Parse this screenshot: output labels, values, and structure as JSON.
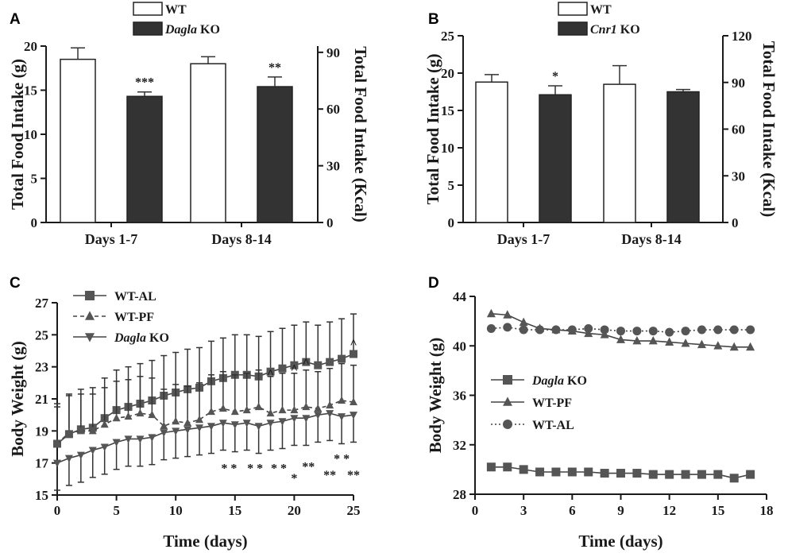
{
  "colors": {
    "ink": "#1a1a1a",
    "ko_fill": "#333333",
    "wt_fill": "#ffffff",
    "marker": "#555555"
  },
  "chart_data": [
    {
      "id": "A",
      "type": "bar",
      "panel_label": "A",
      "categories": [
        "Days 1-7",
        "Days 8-14"
      ],
      "series": [
        {
          "name": "WT",
          "values": [
            18.5,
            18.0
          ],
          "errors": [
            1.3,
            0.8
          ],
          "fill": "#ffffff"
        },
        {
          "name": "Dagla",
          "suffix": " KO",
          "italic": true,
          "values": [
            14.3,
            15.4
          ],
          "errors": [
            0.5,
            1.1
          ],
          "fill": "#333333"
        }
      ],
      "significance": [
        "***",
        "**"
      ],
      "ylabel": "Total Food Intake (g)",
      "ylim": [
        0,
        20
      ],
      "yticks": [
        0,
        5,
        10,
        15,
        20
      ],
      "y2label": "Total Food Intake (Kcal)",
      "y2lim": [
        0,
        93.3
      ],
      "y2ticks": [
        0,
        30,
        60,
        90
      ]
    },
    {
      "id": "B",
      "type": "bar",
      "panel_label": "B",
      "categories": [
        "Days 1-7",
        "Days 8-14"
      ],
      "series": [
        {
          "name": "WT",
          "values": [
            18.8,
            18.5
          ],
          "errors": [
            1.0,
            2.5
          ],
          "fill": "#ffffff"
        },
        {
          "name": "Cnr1",
          "suffix": " KO",
          "italic": true,
          "values": [
            17.1,
            17.5
          ],
          "errors": [
            1.2,
            0.3
          ],
          "fill": "#333333"
        }
      ],
      "significance": [
        "*",
        ""
      ],
      "ylabel": "Total Food Intake (g)",
      "ylim": [
        0,
        25
      ],
      "yticks": [
        0,
        5,
        10,
        15,
        20,
        25
      ],
      "y2label": "Total Food Intake (Kcal)",
      "y2lim": [
        0,
        120
      ],
      "y2ticks": [
        0,
        30,
        60,
        90,
        120
      ]
    },
    {
      "id": "C",
      "type": "line",
      "panel_label": "C",
      "xlabel": "Time (days)",
      "ylabel": "Body Weight (g)",
      "xlim": [
        0,
        25
      ],
      "xticks": [
        0,
        5,
        10,
        15,
        20,
        25
      ],
      "ylim": [
        15,
        27
      ],
      "yticks": [
        15,
        17,
        19,
        21,
        23,
        25,
        27
      ],
      "x": [
        0,
        1,
        2,
        3,
        4,
        5,
        6,
        7,
        8,
        9,
        10,
        11,
        12,
        13,
        14,
        15,
        16,
        17,
        18,
        19,
        20,
        21,
        22,
        23,
        24,
        25
      ],
      "series": [
        {
          "name": "WT-AL",
          "marker": "square",
          "dash": "",
          "error": 2.5,
          "values": [
            18.2,
            18.8,
            19.1,
            19.2,
            19.8,
            20.3,
            20.5,
            20.7,
            20.9,
            21.2,
            21.4,
            21.6,
            21.7,
            22.1,
            22.3,
            22.5,
            22.5,
            22.4,
            22.7,
            22.9,
            23.1,
            23.3,
            23.1,
            23.3,
            23.5,
            23.8
          ]
        },
        {
          "name": "WT-PF",
          "marker": "triangle-up",
          "dash": "5 4",
          "error": 2.3,
          "values": [
            18.2,
            18.9,
            19.0,
            19.0,
            19.4,
            19.8,
            19.9,
            20.1,
            20.0,
            19.3,
            19.6,
            19.5,
            19.7,
            20.2,
            20.4,
            20.2,
            20.3,
            20.5,
            20.1,
            20.3,
            20.3,
            20.5,
            20.4,
            20.6,
            20.9,
            20.8
          ]
        },
        {
          "name": "Dagla",
          "suffix": " KO",
          "italic": true,
          "marker": "triangle-down",
          "dash": "",
          "error": 1.7,
          "values": [
            17.0,
            17.3,
            17.5,
            17.8,
            18.0,
            18.3,
            18.5,
            18.5,
            18.6,
            18.9,
            19.0,
            19.1,
            19.2,
            19.3,
            19.5,
            19.4,
            19.5,
            19.3,
            19.5,
            19.6,
            19.8,
            19.8,
            20.0,
            20.1,
            19.9,
            20.0
          ]
        }
      ],
      "annotations": [
        {
          "text": "^",
          "x": 18,
          "y": 22.6
        },
        {
          "text": "^",
          "x": 20,
          "y": 22.9
        },
        {
          "text": "^",
          "x": 21,
          "y": 23.3
        },
        {
          "text": "^",
          "x": 25,
          "y": 24.5
        },
        {
          "text": "* *",
          "x": 14.5,
          "y": 16.7
        },
        {
          "text": "* *",
          "x": 16.7,
          "y": 16.7
        },
        {
          "text": "* *",
          "x": 18.7,
          "y": 16.7
        },
        {
          "text": "*",
          "x": 20.0,
          "y": 16.1
        },
        {
          "text": "**",
          "x": 21.2,
          "y": 16.8
        },
        {
          "text": "**",
          "x": 23.0,
          "y": 16.3
        },
        {
          "text": "**",
          "x": 25.0,
          "y": 16.3
        },
        {
          "text": "* *",
          "x": 24.0,
          "y": 17.3
        }
      ]
    },
    {
      "id": "D",
      "type": "line",
      "panel_label": "D",
      "xlabel": "Time (days)",
      "ylabel": "Body Weight (g)",
      "xlim": [
        0,
        18
      ],
      "xticks": [
        0,
        3,
        6,
        9,
        12,
        15,
        18
      ],
      "ylim": [
        28,
        44
      ],
      "yticks": [
        28,
        32,
        36,
        40,
        44
      ],
      "x": [
        1,
        2,
        3,
        4,
        5,
        6,
        7,
        8,
        9,
        10,
        11,
        12,
        13,
        14,
        15,
        16,
        17
      ],
      "series": [
        {
          "name": "Dagla",
          "suffix": " KO",
          "italic": true,
          "marker": "square",
          "dash": "",
          "values": [
            30.2,
            30.2,
            30.0,
            29.8,
            29.8,
            29.8,
            29.8,
            29.7,
            29.7,
            29.7,
            29.6,
            29.6,
            29.6,
            29.6,
            29.6,
            29.3,
            29.6
          ]
        },
        {
          "name": "WT-PF",
          "marker": "triangle-up",
          "dash": "",
          "values": [
            42.6,
            42.5,
            41.9,
            41.4,
            41.3,
            41.2,
            41.0,
            40.9,
            40.5,
            40.4,
            40.4,
            40.3,
            40.2,
            40.1,
            40.0,
            39.9,
            39.9
          ]
        },
        {
          "name": "WT-AL",
          "marker": "circle",
          "dash": "2 3",
          "values": [
            41.4,
            41.5,
            41.3,
            41.3,
            41.3,
            41.3,
            41.4,
            41.3,
            41.2,
            41.2,
            41.2,
            41.1,
            41.2,
            41.3,
            41.3,
            41.3,
            41.3
          ]
        }
      ]
    }
  ]
}
